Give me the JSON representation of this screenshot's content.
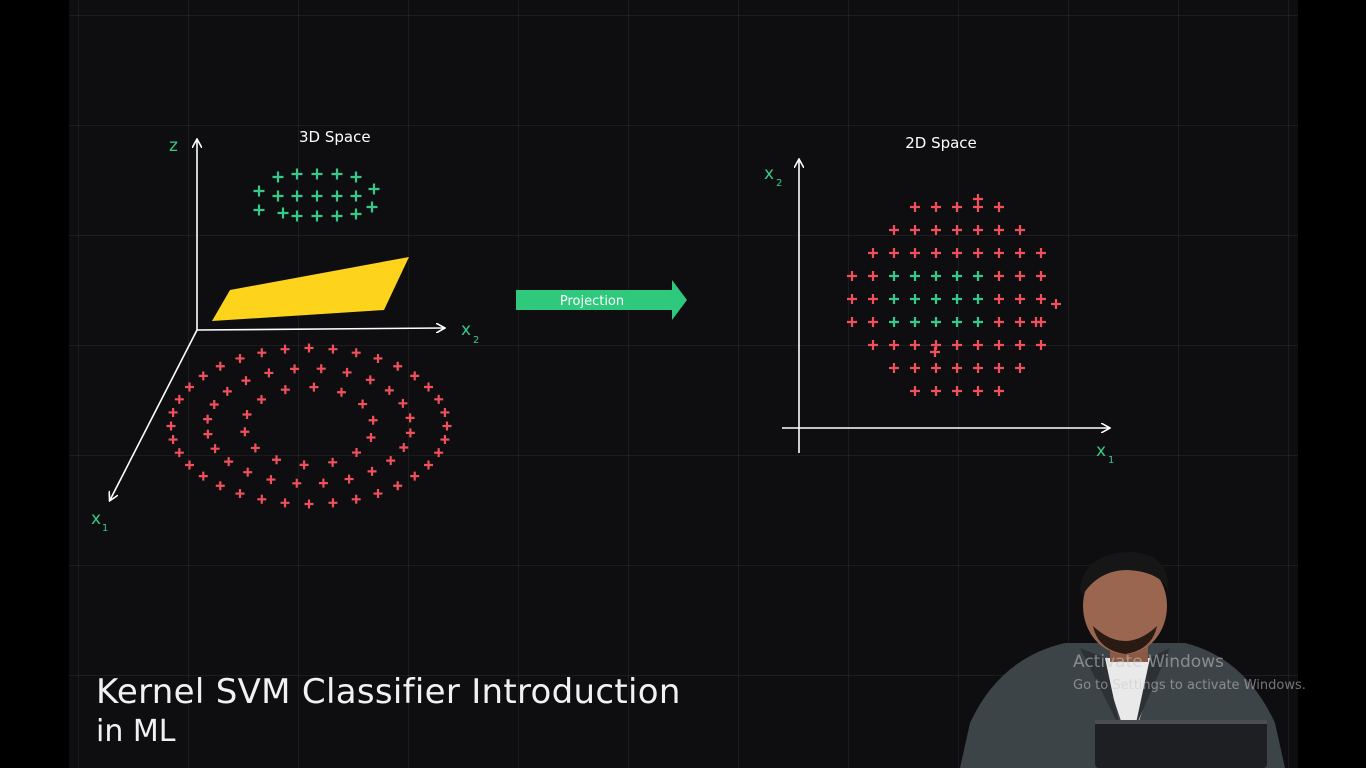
{
  "left_panel": {
    "title": "3D Space",
    "axis_z": "z",
    "axis_x2": "x",
    "axis_x2_sub": "2",
    "axis_x1": "x",
    "axis_x1_sub": "1"
  },
  "arrow": {
    "label": "Projection"
  },
  "right_panel": {
    "title": "2D Space",
    "axis_x2": "x",
    "axis_x2_sub": "2",
    "axis_x1": "x",
    "axis_x1_sub": "1"
  },
  "caption": {
    "line1": "Kernel SVM Classifier Introduction",
    "line2": "in ML"
  },
  "watermark": {
    "line1": "Activate Windows",
    "line2": "Go to Settings to activate Windows."
  },
  "colors": {
    "background": "#0e0e11",
    "positive_class": "#36c987",
    "negative_class": "#f0505c",
    "hyperplane": "#fdd41b",
    "arrow": "#2fc97e",
    "axis": "#ffffff",
    "axis_label": "#36c987"
  },
  "icons": [
    "plus-marker",
    "arrow-right"
  ],
  "presenter": {
    "label": "presenter-video"
  }
}
